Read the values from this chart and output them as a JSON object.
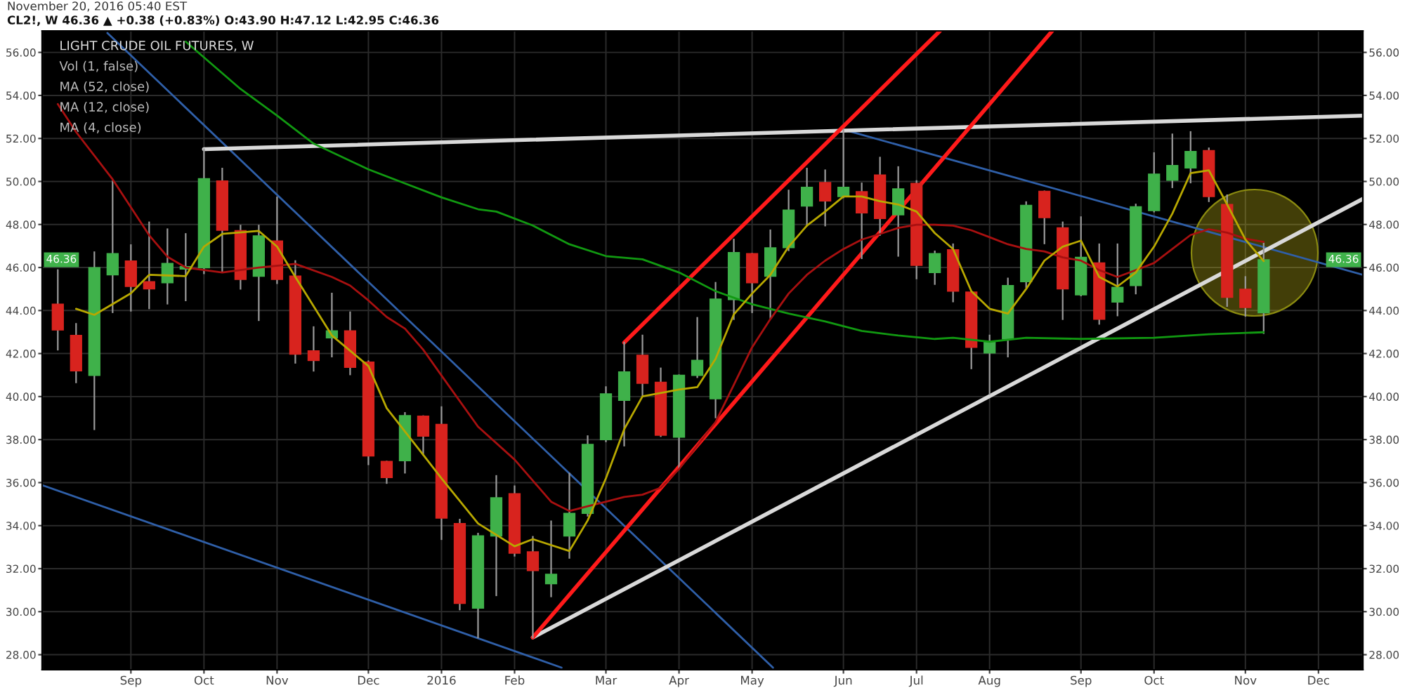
{
  "chart_data": {
    "type": "candlestick",
    "title": "LIGHT CRUDE OIL FUTURES, W",
    "annotations": [
      "November 20, 2016 05:40 EST",
      "CL2!, W 46.36 ▲ +0.38 (+0.83%) O:43.90 H:47.12 L:42.95 C:46.36",
      "Vol (1, false)",
      "MA (52, close)",
      "MA (12, close)",
      "MA (4, close)",
      {
        "text": "46.36",
        "y": 46.36
      }
    ],
    "x": [
      "2015-08-10",
      "2015-08-17",
      "2015-08-24",
      "2015-08-31",
      "2015-09-07",
      "2015-09-14",
      "2015-09-21",
      "2015-09-28",
      "2015-10-05",
      "2015-10-12",
      "2015-10-19",
      "2015-10-26",
      "2015-11-02",
      "2015-11-09",
      "2015-11-16",
      "2015-11-23",
      "2015-11-30",
      "2015-12-07",
      "2015-12-14",
      "2015-12-21",
      "2015-12-28",
      "2016-01-04",
      "2016-01-11",
      "2016-01-18",
      "2016-01-25",
      "2016-02-01",
      "2016-02-08",
      "2016-02-15",
      "2016-02-22",
      "2016-02-29",
      "2016-03-07",
      "2016-03-14",
      "2016-03-21",
      "2016-03-28",
      "2016-04-04",
      "2016-04-11",
      "2016-04-18",
      "2016-04-25",
      "2016-05-02",
      "2016-05-09",
      "2016-05-16",
      "2016-05-23",
      "2016-05-30",
      "2016-06-06",
      "2016-06-13",
      "2016-06-20",
      "2016-06-27",
      "2016-07-04",
      "2016-07-11",
      "2016-07-18",
      "2016-07-25",
      "2016-08-01",
      "2016-08-08",
      "2016-08-15",
      "2016-08-22",
      "2016-08-29",
      "2016-09-05",
      "2016-09-12",
      "2016-09-19",
      "2016-09-26",
      "2016-10-03",
      "2016-10-10",
      "2016-10-17",
      "2016-10-24",
      "2016-10-31",
      "2016-11-07",
      "2016-11-14"
    ],
    "ohlc": [
      [
        44.29,
        45.88,
        42.18,
        43.1
      ],
      [
        42.84,
        43.38,
        40.66,
        41.2
      ],
      [
        40.99,
        46.71,
        38.48,
        45.99
      ],
      [
        45.66,
        50.02,
        43.92,
        46.64
      ],
      [
        46.3,
        47.04,
        43.99,
        45.12
      ],
      [
        45.34,
        48.1,
        44.1,
        45.01
      ],
      [
        45.29,
        47.78,
        44.32,
        46.19
      ],
      [
        45.93,
        47.56,
        44.47,
        46.04
      ],
      [
        45.99,
        51.5,
        45.73,
        50.13
      ],
      [
        50.02,
        50.6,
        45.82,
        47.73
      ],
      [
        47.71,
        47.95,
        45.01,
        45.45
      ],
      [
        45.6,
        47.95,
        43.55,
        47.47
      ],
      [
        47.23,
        49.26,
        45.27,
        45.45
      ],
      [
        45.6,
        46.3,
        41.57,
        41.97
      ],
      [
        42.12,
        43.23,
        41.2,
        41.68
      ],
      [
        42.73,
        44.79,
        41.86,
        43.05
      ],
      [
        43.05,
        43.92,
        41.03,
        41.36
      ],
      [
        41.6,
        41.64,
        36.85,
        37.24
      ],
      [
        36.98,
        36.98,
        35.98,
        36.24
      ],
      [
        37.02,
        39.24,
        36.46,
        39.11
      ],
      [
        39.09,
        39.09,
        37.29,
        38.16
      ],
      [
        38.7,
        39.51,
        33.37,
        34.35
      ],
      [
        34.09,
        34.28,
        30.1,
        30.39
      ],
      [
        30.17,
        33.63,
        28.8,
        33.52
      ],
      [
        33.52,
        36.31,
        30.76,
        35.29
      ],
      [
        35.48,
        35.83,
        32.6,
        32.72
      ],
      [
        32.78,
        33.48,
        28.8,
        31.91
      ],
      [
        31.3,
        34.2,
        30.71,
        31.74
      ],
      [
        33.52,
        36.42,
        32.5,
        34.57
      ],
      [
        34.57,
        38.16,
        34.46,
        37.77
      ],
      [
        38.0,
        40.44,
        37.92,
        40.12
      ],
      [
        39.83,
        42.51,
        37.72,
        41.14
      ],
      [
        41.92,
        42.84,
        40.01,
        40.62
      ],
      [
        40.66,
        41.31,
        38.16,
        38.2
      ],
      [
        38.11,
        40.99,
        36.63,
        40.99
      ],
      [
        40.99,
        43.66,
        40.9,
        41.68
      ],
      [
        39.9,
        45.29,
        39.03,
        44.53
      ],
      [
        44.51,
        47.3,
        43.6,
        46.69
      ],
      [
        46.64,
        46.64,
        43.92,
        45.29
      ],
      [
        45.6,
        47.73,
        43.66,
        46.91
      ],
      [
        46.93,
        49.58,
        46.8,
        48.67
      ],
      [
        48.86,
        50.6,
        47.95,
        49.73
      ],
      [
        49.95,
        50.52,
        47.95,
        49.1
      ],
      [
        49.3,
        52.41,
        49.26,
        49.73
      ],
      [
        49.52,
        49.91,
        46.43,
        48.54
      ],
      [
        50.3,
        51.11,
        47.51,
        48.28
      ],
      [
        48.45,
        50.67,
        46.54,
        49.65
      ],
      [
        49.91,
        50.02,
        45.49,
        46.1
      ],
      [
        45.77,
        46.75,
        45.23,
        46.64
      ],
      [
        46.82,
        47.08,
        44.42,
        44.9
      ],
      [
        44.86,
        44.86,
        41.31,
        42.29
      ],
      [
        42.03,
        42.84,
        40.12,
        42.55
      ],
      [
        42.68,
        45.49,
        41.86,
        45.16
      ],
      [
        45.34,
        49.04,
        45.08,
        48.89
      ],
      [
        49.54,
        49.54,
        47.12,
        48.32
      ],
      [
        47.84,
        48.1,
        43.6,
        45.01
      ],
      [
        44.73,
        48.34,
        44.7,
        46.47
      ],
      [
        46.21,
        47.08,
        43.38,
        43.6
      ],
      [
        44.4,
        47.08,
        43.77,
        45.08
      ],
      [
        45.16,
        48.93,
        44.79,
        48.82
      ],
      [
        48.65,
        51.32,
        48.6,
        50.34
      ],
      [
        50.06,
        52.19,
        49.73,
        50.74
      ],
      [
        50.63,
        52.3,
        49.95,
        51.39
      ],
      [
        51.43,
        51.54,
        49.08,
        49.3
      ],
      [
        48.93,
        49.36,
        44.21,
        44.62
      ],
      [
        44.99,
        45.56,
        43.75,
        44.14
      ],
      [
        43.9,
        47.12,
        42.95,
        46.36
      ]
    ],
    "colors": [
      "#d8231e",
      "#d8231e",
      "#3fb14a",
      "#3fb14a",
      "#d8231e",
      "#d8231e",
      "#3fb14a",
      "#3fb14a",
      "#3fb14a",
      "#d8231e",
      "#d8231e",
      "#3fb14a",
      "#d8231e",
      "#d8231e",
      "#d8231e",
      "#3fb14a",
      "#d8231e",
      "#d8231e",
      "#d8231e",
      "#3fb14a",
      "#d8231e",
      "#d8231e",
      "#d8231e",
      "#3fb14a",
      "#3fb14a",
      "#d8231e",
      "#d8231e",
      "#3fb14a",
      "#3fb14a",
      "#3fb14a",
      "#3fb14a",
      "#3fb14a",
      "#d8231e",
      "#d8231e",
      "#3fb14a",
      "#3fb14a",
      "#3fb14a",
      "#3fb14a",
      "#d8231e",
      "#3fb14a",
      "#3fb14a",
      "#3fb14a",
      "#d8231e",
      "#3fb14a",
      "#d8231e",
      "#d8231e",
      "#3fb14a",
      "#d8231e",
      "#3fb14a",
      "#d8231e",
      "#d8231e",
      "#3fb14a",
      "#3fb14a",
      "#3fb14a",
      "#d8231e",
      "#d8231e",
      "#3fb14a",
      "#d8231e",
      "#3fb14a",
      "#3fb14a",
      "#3fb14a",
      "#3fb14a",
      "#3fb14a",
      "#d8231e",
      "#d8231e",
      "#d8231e",
      "#3fb14a"
    ],
    "series": [
      {
        "type": "line",
        "color": "#119911",
        "x": [
          "2015-09-28",
          "2015-10-19",
          "2015-11-02",
          "2015-11-16",
          "2015-12-07",
          "2015-12-21",
          "2016-01-04",
          "2016-01-18",
          "2016-01-25",
          "2016-02-08",
          "2016-02-22",
          "2016-03-07",
          "2016-03-21",
          "2016-04-04",
          "2016-04-18",
          "2016-05-02",
          "2016-05-16",
          "2016-05-30",
          "2016-06-13",
          "2016-06-27",
          "2016-07-11",
          "2016-07-18",
          "2016-08-01",
          "2016-08-15",
          "2016-09-05",
          "2016-10-03",
          "2016-10-24",
          "2016-11-14"
        ],
        "values": [
          56.5,
          54.3,
          53.06,
          51.76,
          50.56,
          49.91,
          49.26,
          48.71,
          48.6,
          47.95,
          47.08,
          46.53,
          46.38,
          45.77,
          44.9,
          44.29,
          43.86,
          43.49,
          43.05,
          42.84,
          42.68,
          42.73,
          42.55,
          42.73,
          42.68,
          42.73,
          42.9,
          42.99
        ]
      },
      {
        "type": "line",
        "color": "#a81010",
        "x": [
          "2015-08-10",
          "2015-08-17",
          "2015-08-31",
          "2015-09-14",
          "2015-09-21",
          "2015-09-28",
          "2015-10-12",
          "2015-10-26",
          "2015-11-09",
          "2015-11-23",
          "2015-11-30",
          "2015-12-07",
          "2015-12-14",
          "2015-12-21",
          "2015-12-28",
          "2016-01-04",
          "2016-01-18",
          "2016-02-01",
          "2016-02-08",
          "2016-02-15",
          "2016-02-22",
          "2016-02-29",
          "2016-03-07",
          "2016-03-14",
          "2016-03-21",
          "2016-03-28",
          "2016-04-04",
          "2016-04-11",
          "2016-04-18",
          "2016-04-25",
          "2016-05-02",
          "2016-05-09",
          "2016-05-16",
          "2016-05-23",
          "2016-05-30",
          "2016-06-06",
          "2016-06-13",
          "2016-06-20",
          "2016-06-27",
          "2016-07-04",
          "2016-07-11",
          "2016-07-18",
          "2016-07-25",
          "2016-08-01",
          "2016-08-08",
          "2016-08-15",
          "2016-08-22",
          "2016-08-29",
          "2016-09-05",
          "2016-09-12",
          "2016-09-19",
          "2016-09-26",
          "2016-10-03",
          "2016-10-10",
          "2016-10-17",
          "2016-10-24",
          "2016-10-31",
          "2016-11-07",
          "2016-11-14"
        ],
        "values": [
          53.6,
          52.3,
          50.1,
          47.5,
          46.5,
          46.0,
          45.77,
          46.0,
          46.17,
          45.56,
          45.16,
          44.47,
          43.7,
          43.16,
          42.18,
          40.98,
          38.6,
          37.07,
          36.09,
          35.11,
          34.68,
          34.9,
          35.11,
          35.33,
          35.44,
          35.76,
          36.63,
          37.72,
          38.81,
          40.55,
          42.29,
          43.6,
          44.79,
          45.66,
          46.32,
          46.86,
          47.3,
          47.56,
          47.84,
          47.99,
          47.99,
          47.95,
          47.73,
          47.41,
          47.08,
          46.86,
          46.75,
          46.47,
          46.32,
          45.88,
          45.56,
          45.88,
          46.21,
          46.86,
          47.51,
          47.78,
          47.62,
          47.34,
          47.19
        ]
      },
      {
        "type": "line",
        "color": "#b8a800",
        "x": [
          "2015-08-17",
          "2015-08-24",
          "2015-09-07",
          "2015-09-14",
          "2015-09-28",
          "2015-10-05",
          "2015-10-12",
          "2015-10-26",
          "2015-11-02",
          "2015-11-09",
          "2015-11-23",
          "2015-12-07",
          "2015-12-14",
          "2015-12-28",
          "2016-01-04",
          "2016-01-18",
          "2016-02-01",
          "2016-02-08",
          "2016-02-22",
          "2016-02-29",
          "2016-03-07",
          "2016-03-14",
          "2016-03-21",
          "2016-04-04",
          "2016-04-11",
          "2016-04-18",
          "2016-04-25",
          "2016-05-02",
          "2016-05-09",
          "2016-05-16",
          "2016-05-23",
          "2016-05-30",
          "2016-06-06",
          "2016-06-13",
          "2016-06-20",
          "2016-06-27",
          "2016-07-04",
          "2016-07-11",
          "2016-07-18",
          "2016-07-25",
          "2016-08-01",
          "2016-08-08",
          "2016-08-15",
          "2016-08-22",
          "2016-08-29",
          "2016-09-05",
          "2016-09-12",
          "2016-09-19",
          "2016-09-26",
          "2016-10-03",
          "2016-10-10",
          "2016-10-17",
          "2016-10-24",
          "2016-10-31",
          "2016-11-07",
          "2016-11-14"
        ],
        "values": [
          44.08,
          43.8,
          44.8,
          45.66,
          45.6,
          46.97,
          47.56,
          47.7,
          46.97,
          45.56,
          42.84,
          41.42,
          39.46,
          37.29,
          36.2,
          34.1,
          33.04,
          33.37,
          32.82,
          34.24,
          36.2,
          38.48,
          40.01,
          40.33,
          40.44,
          41.75,
          43.82,
          44.79,
          45.66,
          46.97,
          47.95,
          48.6,
          49.3,
          49.3,
          49.08,
          48.93,
          48.6,
          47.6,
          46.86,
          44.9,
          44.08,
          43.86,
          45.0,
          46.32,
          46.97,
          47.25,
          45.56,
          45.12,
          45.77,
          46.97,
          48.5,
          50.39,
          50.52,
          48.93,
          47.3,
          46.3
        ]
      },
      {
        "type": "line",
        "color": "#2f5fa8",
        "x": [
          "2015-08-29",
          "2016-05-10"
        ],
        "values": [
          56.9,
          27.4
        ]
      },
      {
        "type": "line",
        "color": "#2f5fa8",
        "x": [
          "2015-08-04",
          "2016-02-19"
        ],
        "values": [
          35.88,
          27.4
        ]
      },
      {
        "type": "line",
        "color": "#2f5fa8",
        "x": [
          "2016-06-06",
          "2016-12-22"
        ],
        "values": [
          52.41,
          45.66
        ]
      },
      {
        "type": "line",
        "color": "#d9d9d9",
        "x": [
          "2015-10-05",
          "2016-12-22"
        ],
        "values": [
          51.5,
          53.06
        ]
      },
      {
        "type": "line",
        "color": "#d9d9d9",
        "x": [
          "2016-02-08",
          "2016-12-22"
        ],
        "values": [
          28.8,
          49.19
        ]
      },
      {
        "type": "line",
        "color": "#ff1a1a",
        "x": [
          "2016-03-14",
          "2016-07-13"
        ],
        "values": [
          42.51,
          57
        ]
      },
      {
        "type": "line",
        "color": "#ff1a1a",
        "x": [
          "2016-02-08",
          "2016-08-25"
        ],
        "values": [
          28.8,
          57
        ]
      }
    ],
    "xlim": [
      "2015-08-04",
      "2016-12-22"
    ],
    "xticks": [
      {
        "value": "2015-09-07",
        "label": "Sep"
      },
      {
        "value": "2015-10-05",
        "label": "Oct"
      },
      {
        "value": "2015-11-02",
        "label": "Nov"
      },
      {
        "value": "2015-12-07",
        "label": "Dec"
      },
      {
        "value": "2016-01-04",
        "label": "2016"
      },
      {
        "value": "2016-02-01",
        "label": "Feb"
      },
      {
        "value": "2016-03-07",
        "label": "Mar"
      },
      {
        "value": "2016-04-04",
        "label": "Apr"
      },
      {
        "value": "2016-05-02",
        "label": "May"
      },
      {
        "value": "2016-06-06",
        "label": "Jun"
      },
      {
        "value": "2016-07-04",
        "label": "Jul"
      },
      {
        "value": "2016-08-01",
        "label": "Aug"
      },
      {
        "value": "2016-09-05",
        "label": "Sep"
      },
      {
        "value": "2016-10-03",
        "label": "Oct"
      },
      {
        "value": "2016-11-07",
        "label": "Nov"
      },
      {
        "value": "2016-12-05",
        "label": "Dec"
      }
    ],
    "ylim": [
      27.3,
      57
    ],
    "yticks": [
      {
        "value": 28,
        "label": "28.00"
      },
      {
        "value": 30,
        "label": "30.00"
      },
      {
        "value": 32,
        "label": "32.00"
      },
      {
        "value": 34,
        "label": "34.00"
      },
      {
        "value": 36,
        "label": "36.00"
      },
      {
        "value": 38,
        "label": "38.00"
      },
      {
        "value": 40,
        "label": "40.00"
      },
      {
        "value": 42,
        "label": "42.00"
      },
      {
        "value": 44,
        "label": "44.00"
      },
      {
        "value": 46,
        "label": "46.00"
      },
      {
        "value": 48,
        "label": "48.00"
      },
      {
        "value": 50,
        "label": "50.00"
      },
      {
        "value": 52,
        "label": "52.00"
      },
      {
        "value": 54,
        "label": "54.00"
      },
      {
        "value": 56,
        "label": "56.00"
      }
    ],
    "y2lim": [
      27.3,
      57
    ],
    "y2ticks": [
      {
        "value": 28,
        "label": "28.00"
      },
      {
        "value": 30,
        "label": "30.00"
      },
      {
        "value": 32,
        "label": "32.00"
      },
      {
        "value": 34,
        "label": "34.00"
      },
      {
        "value": 36,
        "label": "36.00"
      },
      {
        "value": 38,
        "label": "38.00"
      },
      {
        "value": 40,
        "label": "40.00"
      },
      {
        "value": 42,
        "label": "42.00"
      },
      {
        "value": 44,
        "label": "44.00"
      },
      {
        "value": 46,
        "label": "46.00"
      },
      {
        "value": 48,
        "label": "48.00"
      },
      {
        "value": 50,
        "label": "50.00"
      },
      {
        "value": 52,
        "label": "52.00"
      },
      {
        "value": 54,
        "label": "54.00"
      },
      {
        "value": 56,
        "label": "56.00"
      }
    ],
    "grid": true
  }
}
